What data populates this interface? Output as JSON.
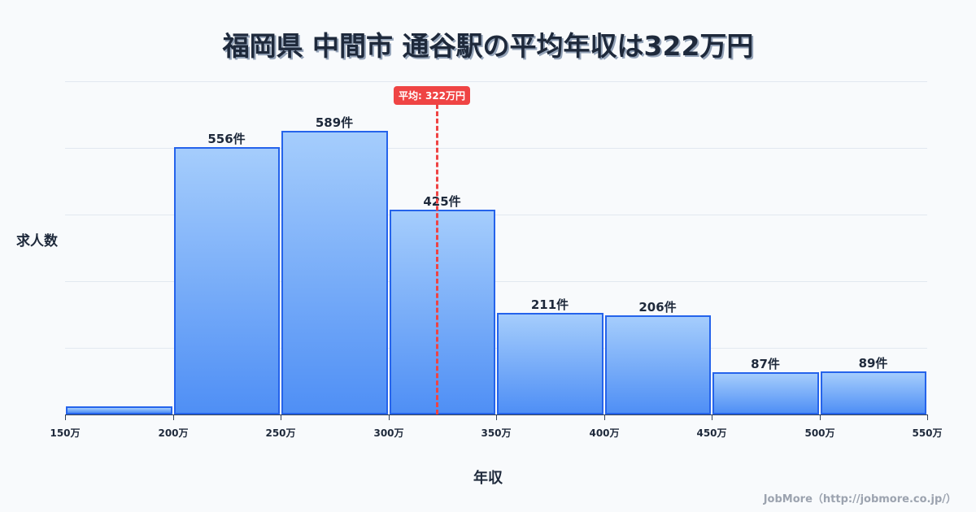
{
  "title": "福岡県 中間市 通谷駅の平均年収は322万円",
  "average_badge": "平均: 322万円",
  "y_axis_label": "求人数",
  "x_axis_label": "年収",
  "credit": "JobMore（http://jobmore.co.jp/）",
  "colors": {
    "bar_border": "#2563eb",
    "bar_top": "#a5cdfc",
    "bar_bottom": "#4f8ff5",
    "average_line": "#ef4444",
    "text": "#1e293b"
  },
  "chart_data": {
    "type": "bar",
    "title": "福岡県 中間市 通谷駅の平均年収は322万円",
    "xlabel": "年収",
    "ylabel": "求人数",
    "categories": [
      "150万-200万",
      "200万-250万",
      "250万-300万",
      "300万-350万",
      "350万-400万",
      "400万-450万",
      "450万-500万",
      "500万-550万"
    ],
    "values": [
      17,
      556,
      589,
      425,
      211,
      206,
      87,
      89
    ],
    "labels": [
      "",
      "556件",
      "589件",
      "425件",
      "211件",
      "206件",
      "87件",
      "89件"
    ],
    "x_ticks": [
      "150万",
      "200万",
      "250万",
      "300万",
      "350万",
      "400万",
      "450万",
      "500万",
      "550万"
    ],
    "average": {
      "value": 322,
      "label": "平均: 322万円"
    },
    "grid": true,
    "legend": "none"
  }
}
